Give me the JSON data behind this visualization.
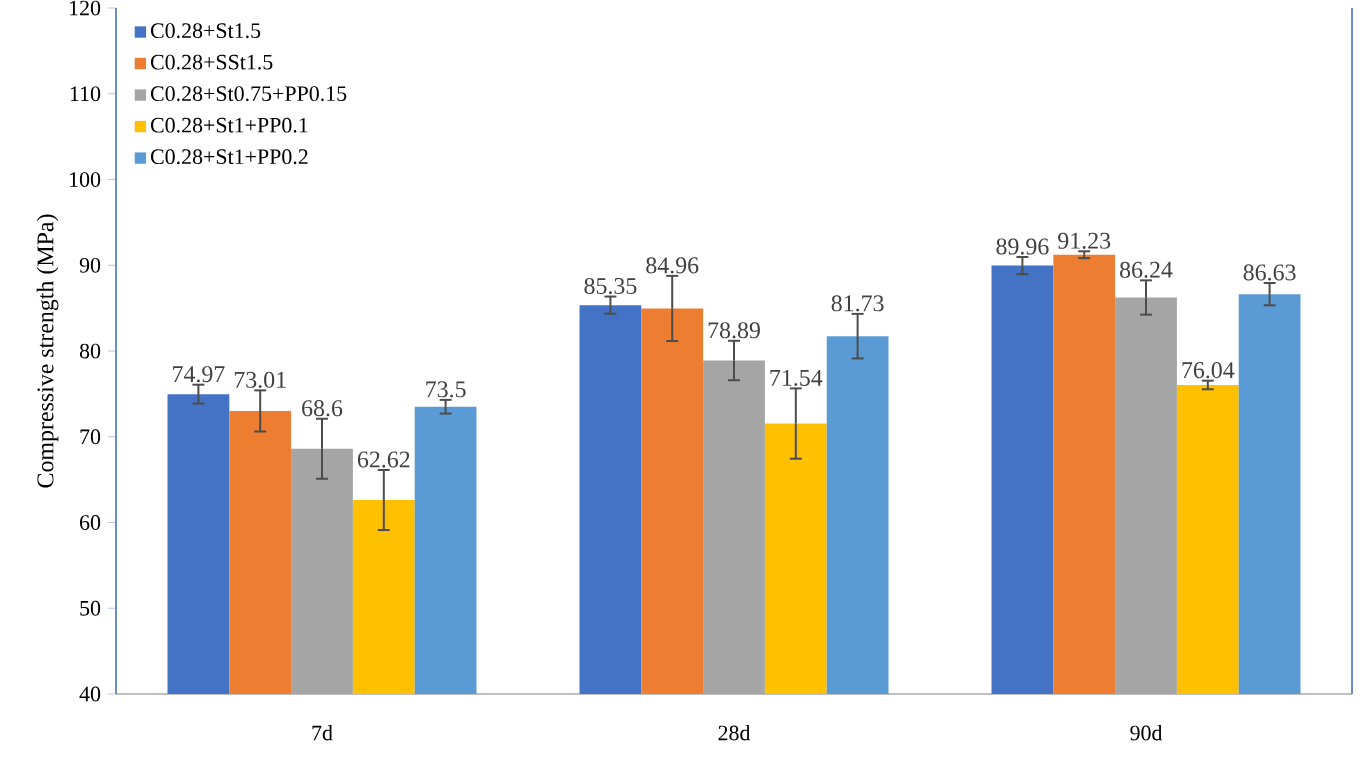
{
  "chart_data": {
    "type": "bar",
    "ylabel": "Compressive strength (MPa)",
    "categories": [
      "7d",
      "28d",
      "90d"
    ],
    "ylim": [
      40,
      120
    ],
    "yticks": [
      40,
      50,
      60,
      70,
      80,
      90,
      100,
      110,
      120
    ],
    "legend": "top left",
    "data_labels": true,
    "grid": false,
    "series": [
      {
        "name": "C0.28+St1.5",
        "color": "#4472c4",
        "values": [
          74.97,
          85.35,
          89.96
        ],
        "errors": [
          1.1,
          1.0,
          1.0
        ]
      },
      {
        "name": "C0.28+SSt1.5",
        "color": "#ed7d31",
        "values": [
          73.01,
          84.96,
          91.23
        ],
        "errors": [
          2.4,
          3.8,
          0.4
        ]
      },
      {
        "name": "C0.28+St0.75+PP0.15",
        "color": "#a5a5a5",
        "values": [
          68.6,
          78.89,
          86.24
        ],
        "errors": [
          3.5,
          2.3,
          2.0
        ]
      },
      {
        "name": "C0.28+St1+PP0.1",
        "color": "#ffc000",
        "values": [
          62.62,
          71.54,
          76.04
        ],
        "errors": [
          3.5,
          4.1,
          0.5
        ]
      },
      {
        "name": "C0.28+St1+PP0.2",
        "color": "#5b9bd5",
        "values": [
          73.5,
          81.73,
          86.63
        ],
        "errors": [
          0.8,
          2.6,
          1.3
        ]
      }
    ]
  }
}
